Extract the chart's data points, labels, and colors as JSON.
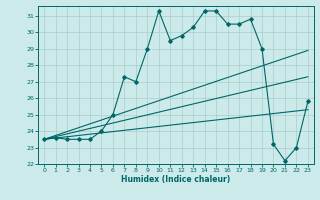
{
  "title": "",
  "xlabel": "Humidex (Indice chaleur)",
  "ylabel": "",
  "bg_color": "#cceaea",
  "grid_color": "#aacccc",
  "line_color": "#006666",
  "xlim": [
    -0.5,
    23.5
  ],
  "ylim": [
    22,
    31.6
  ],
  "yticks": [
    22,
    23,
    24,
    25,
    26,
    27,
    28,
    29,
    30,
    31
  ],
  "xticks": [
    0,
    1,
    2,
    3,
    4,
    5,
    6,
    7,
    8,
    9,
    10,
    11,
    12,
    13,
    14,
    15,
    16,
    17,
    18,
    19,
    20,
    21,
    22,
    23
  ],
  "line1_x": [
    0,
    1,
    2,
    3,
    4,
    5,
    6,
    7,
    8,
    9,
    10,
    11,
    12,
    13,
    14,
    15,
    16,
    17,
    18,
    19,
    20,
    21,
    22,
    23
  ],
  "line1_y": [
    23.5,
    23.6,
    23.5,
    23.5,
    23.5,
    24.0,
    25.0,
    27.3,
    27.0,
    29.0,
    31.3,
    29.5,
    29.8,
    30.3,
    31.3,
    31.3,
    30.5,
    30.5,
    30.8,
    29.0,
    23.2,
    22.2,
    23.0,
    25.8
  ],
  "line2_x": [
    0,
    23
  ],
  "line2_y": [
    23.5,
    28.9
  ],
  "line3_x": [
    0,
    23
  ],
  "line3_y": [
    23.5,
    27.3
  ],
  "line4_x": [
    0,
    23
  ],
  "line4_y": [
    23.5,
    25.3
  ]
}
